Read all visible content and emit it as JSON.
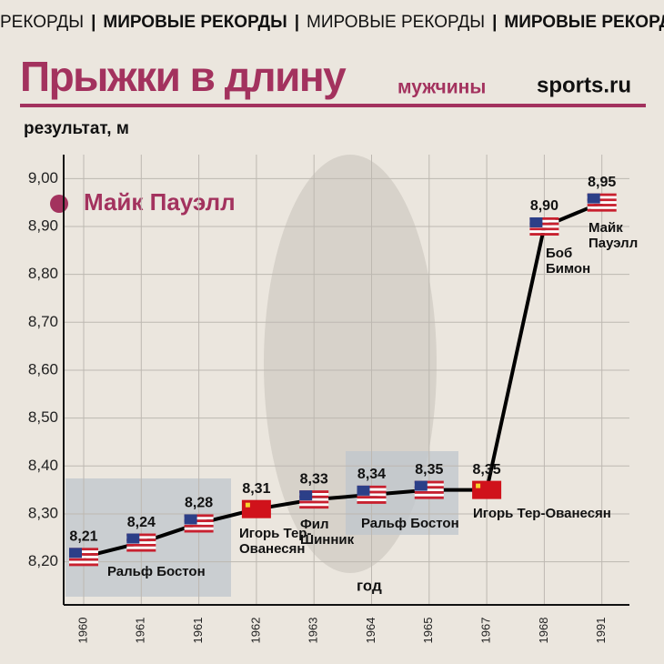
{
  "header": {
    "items": [
      "РЕКОРДЫ",
      "МИРОВЫЕ РЕКОРДЫ",
      "МИРОВЫЕ РЕКОРДЫ",
      "МИРОВЫЕ РЕКОРД"
    ]
  },
  "brand": "sports.ru",
  "chart_data": {
    "type": "line",
    "title": "Прыжки в длину",
    "subtitle": "мужчины",
    "y_label": "результат, м",
    "x_label": "год",
    "legend_label": "Майк Пауэлл",
    "categories": [
      "1960",
      "1961",
      "1961",
      "1962",
      "1963",
      "1964",
      "1965",
      "1967",
      "1968",
      "1991"
    ],
    "values": [
      8.21,
      8.24,
      8.28,
      8.31,
      8.33,
      8.34,
      8.35,
      8.35,
      8.9,
      8.95
    ],
    "value_labels": [
      "8,21",
      "8,24",
      "8,28",
      "8,31",
      "8,33",
      "8,34",
      "8,35",
      "8,35",
      "8,90",
      "8,95"
    ],
    "athletes": [
      null,
      "Ральф Бостон",
      null,
      "Игорь Тер-Ованесян",
      "Фил Шинник",
      "Ральф Бостон",
      null,
      "Игорь Тер-Ованесян",
      "Боб Бимон",
      "Майк Пауэлл"
    ],
    "color": "#000000",
    "accent": "#a3325e",
    "ylim": [
      8.11,
      9.05
    ],
    "yticks": [
      {
        "value": 8.2,
        "label": "8,20"
      },
      {
        "value": 8.3,
        "label": "8,30"
      },
      {
        "value": 8.4,
        "label": "8,40"
      },
      {
        "value": 8.5,
        "label": "8,50"
      },
      {
        "value": 8.6,
        "label": "8,60"
      },
      {
        "value": 8.7,
        "label": "8,70"
      },
      {
        "value": 8.8,
        "label": "8,80"
      },
      {
        "value": 8.9,
        "label": "8,90"
      },
      {
        "value": 9.0,
        "label": "9,00"
      }
    ],
    "grid": true
  }
}
